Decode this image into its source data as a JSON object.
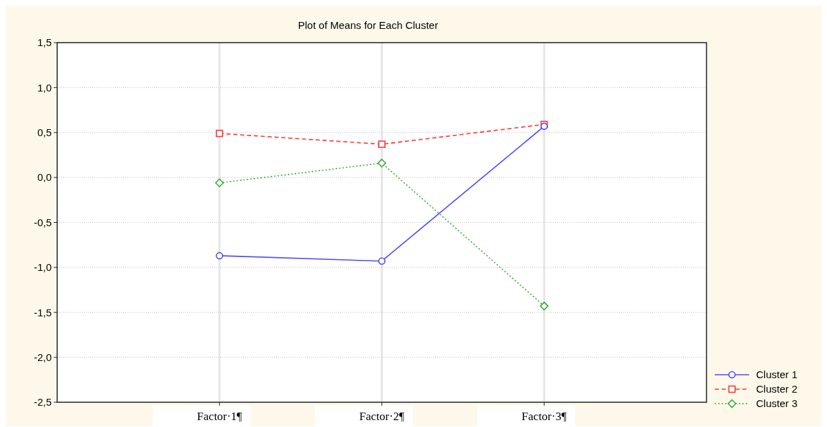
{
  "chart_data": {
    "type": "line",
    "title": "Plot of Means for Each Cluster",
    "categories": [
      "Factor·1¶",
      "Factor·2¶",
      "Factor·3¶"
    ],
    "series": [
      {
        "name": "Cluster 1",
        "color": "#4a4aff",
        "values": [
          -0.87,
          -0.93,
          0.57
        ],
        "marker": "circle",
        "line_style": "solid"
      },
      {
        "name": "Cluster 2",
        "color": "#ff3333",
        "values": [
          0.49,
          0.37,
          0.59
        ],
        "marker": "square",
        "line_style": "dashed"
      },
      {
        "name": "Cluster 3",
        "color": "#33aa33",
        "values": [
          -0.06,
          0.16,
          -1.43
        ],
        "marker": "diamond",
        "line_style": "dotted"
      }
    ],
    "ylim": [
      -2.5,
      1.5
    ],
    "yticks": [
      {
        "value": -2.5,
        "label": "-2,5"
      },
      {
        "value": -2,
        "label": "-2,0"
      },
      {
        "value": -1.5,
        "label": "-1,5"
      },
      {
        "value": -1,
        "label": "-1,0"
      },
      {
        "value": -0.5,
        "label": "-0,5"
      },
      {
        "value": 0,
        "label": "0,0"
      },
      {
        "value": 0.5,
        "label": "0,5"
      },
      {
        "value": 1,
        "label": "1,0"
      },
      {
        "value": 1.5,
        "label": "1,5"
      }
    ],
    "grid": true,
    "legend": "bottom right"
  }
}
